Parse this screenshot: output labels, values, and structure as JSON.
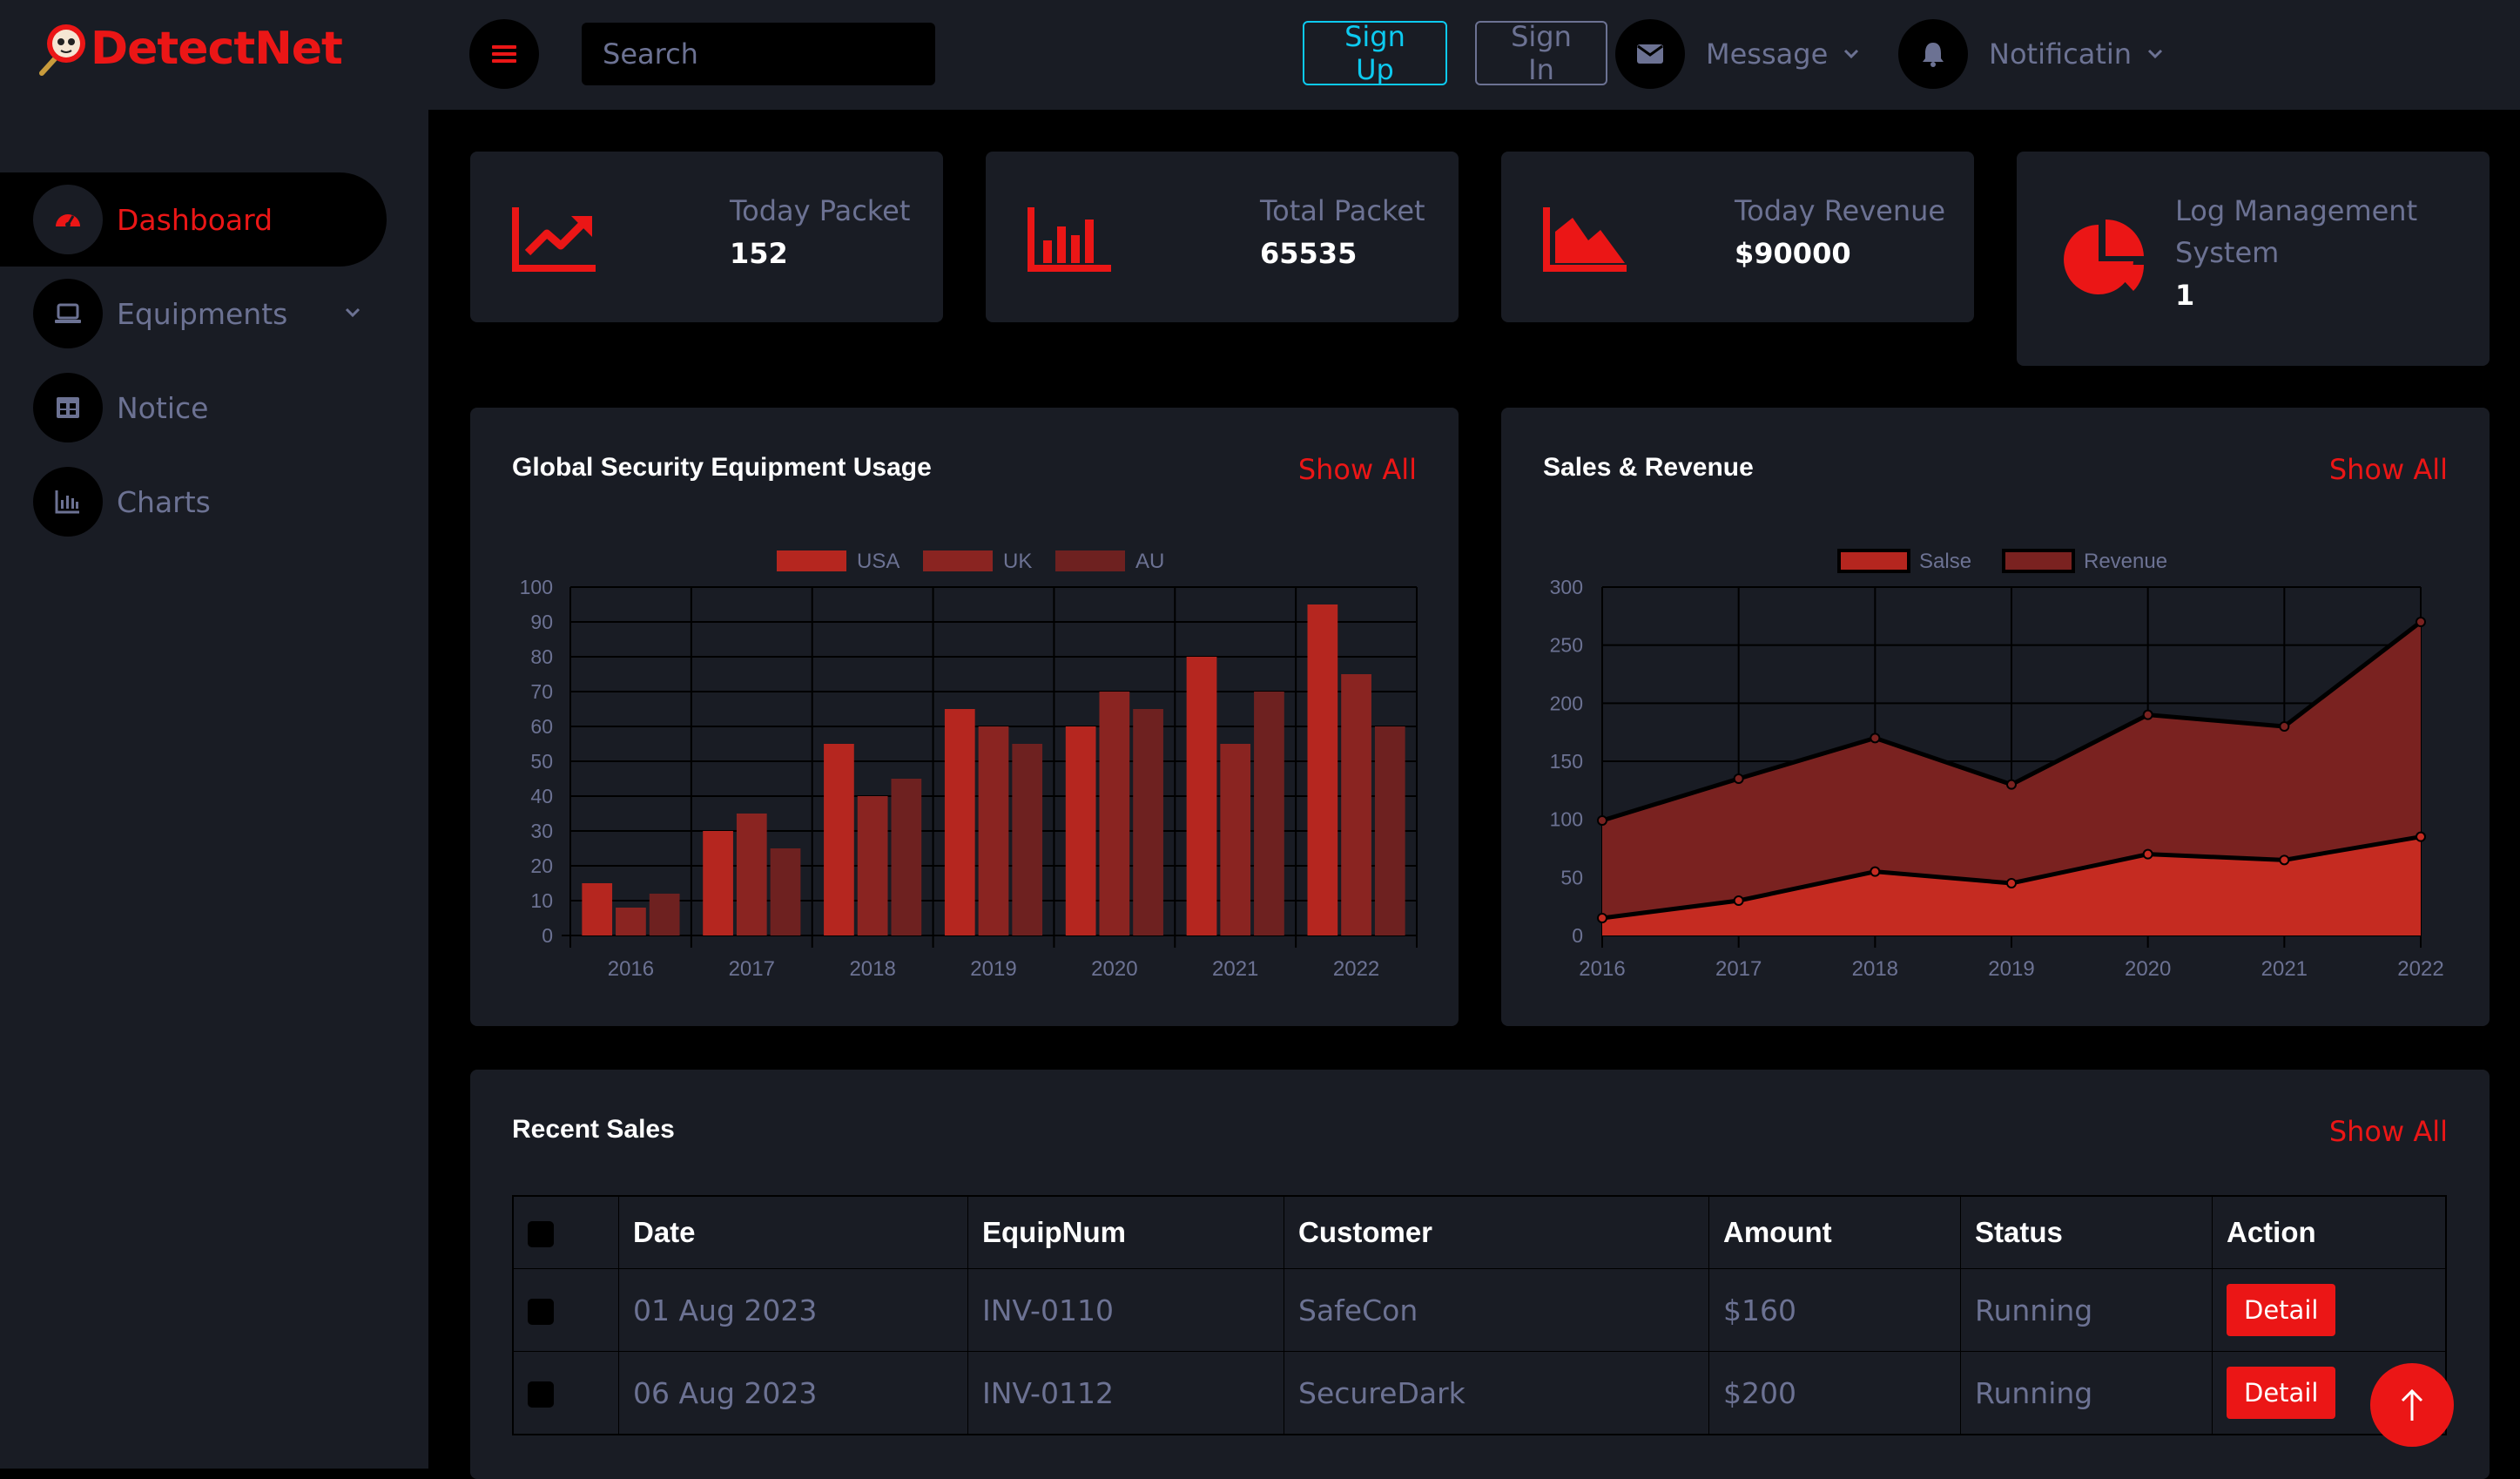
{
  "app": {
    "brand": "DetectNet"
  },
  "sidebar": {
    "items": [
      {
        "label": "Dashboard",
        "icon": "gauge-icon",
        "active": true
      },
      {
        "label": "Equipments",
        "icon": "laptop-icon",
        "has_submenu": true
      },
      {
        "label": "Notice",
        "icon": "table-icon"
      },
      {
        "label": "Charts",
        "icon": "chart-bar-icon"
      }
    ]
  },
  "topbar": {
    "search_placeholder": "Search",
    "message_label": "Message",
    "notification_label": "Notificatin",
    "signup_label": "Sign Up",
    "signin_label": "Sign In"
  },
  "stats": [
    {
      "label": "Today Packet",
      "value": "152",
      "icon": "chart-line-icon"
    },
    {
      "label": "Total Packet",
      "value": "65535",
      "icon": "chart-bar-icon"
    },
    {
      "label": "Today Revenue",
      "value": "$90000",
      "icon": "chart-area-icon"
    },
    {
      "label": "Log Management System",
      "value": "1",
      "icon": "chart-pie-icon"
    }
  ],
  "colors": {
    "accent": "#eb1616",
    "panel": "#191c24",
    "background": "#000000",
    "muted": "#6c7293",
    "info": "#0dcaf0"
  },
  "chart_data": [
    {
      "type": "bar",
      "title": "Global Security Equipment Usage",
      "show_all": "Show All",
      "categories": [
        "2016",
        "2017",
        "2018",
        "2019",
        "2020",
        "2021",
        "2022"
      ],
      "series": [
        {
          "name": "USA",
          "values": [
            15,
            30,
            55,
            65,
            60,
            80,
            95
          ]
        },
        {
          "name": "UK",
          "values": [
            8,
            35,
            40,
            60,
            70,
            55,
            75
          ]
        },
        {
          "name": "AU",
          "values": [
            12,
            25,
            45,
            55,
            65,
            70,
            60
          ]
        }
      ],
      "ylim": [
        0,
        100
      ],
      "yticks": [
        "0",
        "10",
        "20",
        "30",
        "40",
        "50",
        "60",
        "70",
        "80",
        "90",
        "100"
      ],
      "legend": "top"
    },
    {
      "type": "area",
      "title": "Sales & Revenue",
      "show_all": "Show All",
      "categories": [
        "2016",
        "2017",
        "2018",
        "2019",
        "2020",
        "2021",
        "2022"
      ],
      "series": [
        {
          "name": "Salse",
          "values": [
            15,
            30,
            55,
            45,
            70,
            65,
            85
          ]
        },
        {
          "name": "Revenue",
          "values": [
            99,
            135,
            170,
            130,
            190,
            180,
            270
          ]
        }
      ],
      "ylim": [
        0,
        300
      ],
      "yticks": [
        "0",
        "50",
        "100",
        "150",
        "200",
        "250",
        "300"
      ],
      "legend": "top"
    }
  ],
  "recent_sales": {
    "title": "Recent Sales",
    "show_all": "Show All",
    "columns": [
      "Date",
      "EquipNum",
      "Customer",
      "Amount",
      "Status",
      "Action"
    ],
    "rows": [
      {
        "date": "01 Aug 2023",
        "equip": "INV-0110",
        "customer": "SafeCon",
        "amount": "$160",
        "status": "Running",
        "action": "Detail"
      },
      {
        "date": "06 Aug 2023",
        "equip": "INV-0112",
        "customer": "SecureDark",
        "amount": "$200",
        "status": "Running",
        "action": "Detail"
      }
    ]
  }
}
